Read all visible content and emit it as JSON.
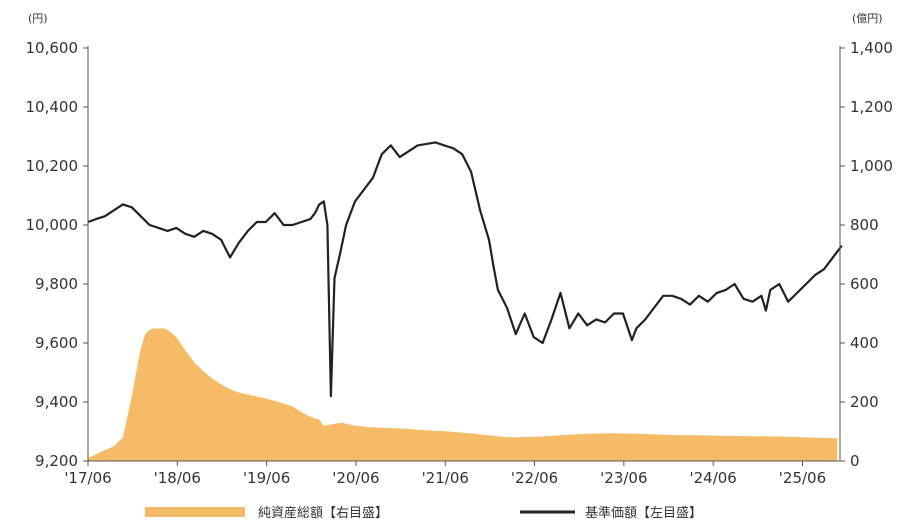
{
  "chart_data": {
    "type": "line",
    "left_unit": "(円)",
    "right_unit": "(億円)",
    "left_axis": {
      "ylim": [
        9200,
        10600
      ],
      "ticks": [
        "9,200",
        "9,400",
        "9,600",
        "9,800",
        "10,000",
        "10,200",
        "10,400",
        "10,600"
      ]
    },
    "right_axis": {
      "ylim": [
        0,
        1400
      ],
      "ticks": [
        "0",
        "200",
        "400",
        "600",
        "800",
        "1,000",
        "1,200",
        "1,400"
      ]
    },
    "x_ticks": [
      "'17/06",
      "'18/06",
      "'19/06",
      "'20/06",
      "'21/06",
      "'22/06",
      "'23/06",
      "'24/06",
      "'25/06"
    ],
    "grid": false,
    "legend_position": "bottom",
    "series": [
      {
        "name": "純資産総額【右目盛】",
        "axis": "right",
        "chart_type": "area",
        "color": "#f6bb66",
        "x": [
          2017.46,
          2017.6,
          2017.75,
          2017.85,
          2017.95,
          2018.0,
          2018.05,
          2018.1,
          2018.15,
          2018.2,
          2018.25,
          2018.3,
          2018.35,
          2018.45,
          2018.55,
          2018.65,
          2018.75,
          2018.85,
          2018.95,
          2019.05,
          2019.15,
          2019.3,
          2019.45,
          2019.6,
          2019.75,
          2019.85,
          2019.95,
          2020.05,
          2020.1,
          2020.2,
          2020.3,
          2020.45,
          2020.6,
          2020.8,
          2021.0,
          2021.2,
          2021.5,
          2021.8,
          2022.0,
          2022.2,
          2022.5,
          2022.8,
          2023.0,
          2023.3,
          2023.6,
          2023.8,
          2024.0,
          2024.3,
          2024.6,
          2024.9,
          2025.2,
          2025.5,
          2025.85
        ],
        "values": [
          10,
          30,
          50,
          80,
          220,
          300,
          380,
          430,
          445,
          450,
          448,
          450,
          445,
          420,
          375,
          335,
          305,
          280,
          260,
          243,
          232,
          222,
          212,
          200,
          185,
          165,
          150,
          140,
          120,
          125,
          130,
          120,
          115,
          112,
          110,
          105,
          100,
          92,
          85,
          80,
          82,
          88,
          92,
          94,
          93,
          90,
          88,
          87,
          85,
          84,
          83,
          80,
          77
        ]
      },
      {
        "name": "基準価額【左目盛】",
        "axis": "left",
        "chart_type": "line",
        "color": "#222222",
        "x": [
          2017.46,
          2017.55,
          2017.65,
          2017.75,
          2017.85,
          2017.95,
          2018.05,
          2018.15,
          2018.25,
          2018.35,
          2018.45,
          2018.55,
          2018.65,
          2018.75,
          2018.85,
          2018.95,
          2019.05,
          2019.15,
          2019.25,
          2019.35,
          2019.45,
          2019.55,
          2019.65,
          2019.75,
          2019.85,
          2019.95,
          2020.0,
          2020.05,
          2020.1,
          2020.14,
          2020.18,
          2020.22,
          2020.28,
          2020.35,
          2020.45,
          2020.55,
          2020.65,
          2020.75,
          2020.85,
          2020.95,
          2021.05,
          2021.15,
          2021.25,
          2021.35,
          2021.45,
          2021.55,
          2021.65,
          2021.75,
          2021.85,
          2021.95,
          2022.0,
          2022.05,
          2022.15,
          2022.25,
          2022.35,
          2022.45,
          2022.55,
          2022.65,
          2022.75,
          2022.85,
          2022.95,
          2023.05,
          2023.15,
          2023.25,
          2023.35,
          2023.45,
          2023.55,
          2023.6,
          2023.7,
          2023.8,
          2023.9,
          2024.0,
          2024.1,
          2024.2,
          2024.3,
          2024.4,
          2024.5,
          2024.6,
          2024.7,
          2024.8,
          2024.9,
          2025.0,
          2025.05,
          2025.1,
          2025.2,
          2025.3,
          2025.4,
          2025.5,
          2025.6,
          2025.7,
          2025.8,
          2025.9
        ],
        "values": [
          10010,
          10020,
          10030,
          10050,
          10070,
          10060,
          10030,
          10000,
          9990,
          9980,
          9990,
          9970,
          9960,
          9980,
          9970,
          9950,
          9890,
          9940,
          9980,
          10010,
          10010,
          10040,
          10000,
          10000,
          10010,
          10020,
          10040,
          10070,
          10080,
          10000,
          9420,
          9820,
          9900,
          10000,
          10080,
          10120,
          10160,
          10240,
          10270,
          10230,
          10250,
          10270,
          10275,
          10280,
          10270,
          10260,
          10240,
          10180,
          10050,
          9950,
          9860,
          9780,
          9720,
          9630,
          9700,
          9620,
          9600,
          9680,
          9770,
          9650,
          9700,
          9660,
          9680,
          9670,
          9700,
          9700,
          9610,
          9650,
          9680,
          9720,
          9760,
          9760,
          9750,
          9730,
          9760,
          9740,
          9770,
          9780,
          9800,
          9750,
          9740,
          9760,
          9710,
          9780,
          9800,
          9740,
          9770,
          9800,
          9830,
          9850,
          9890,
          9930
        ]
      }
    ]
  }
}
